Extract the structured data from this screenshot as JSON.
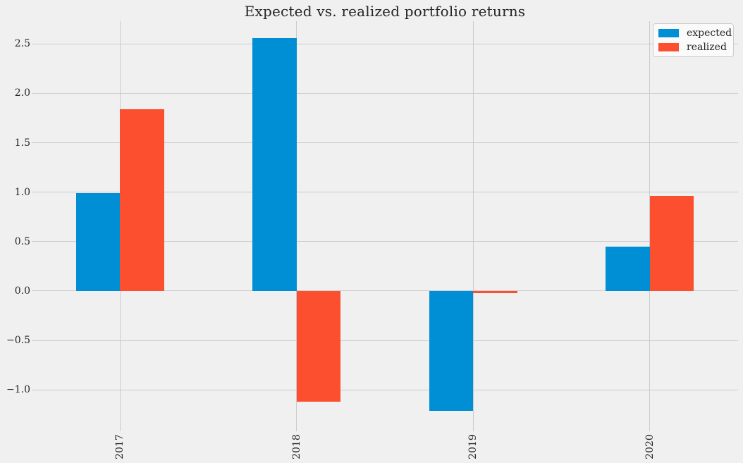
{
  "title": "Expected vs. realized portfolio returns",
  "colors": {
    "background": "#f0f0f0",
    "grid": "#cbcbcb",
    "tick": "#cbcbcb",
    "text": "#262626",
    "expected": "#008fd5",
    "realized": "#fc4f30",
    "legend_background": "#fafafa",
    "legend_border": "#cccccc"
  },
  "legend": {
    "position": "upper right",
    "entries": [
      {
        "label": "expected",
        "color": "#008fd5"
      },
      {
        "label": "realized",
        "color": "#fc4f30"
      }
    ]
  },
  "chart_data": {
    "type": "bar",
    "title": "Expected vs. realized portfolio returns",
    "categories": [
      "2017",
      "2018",
      "2019",
      "2020"
    ],
    "series": [
      {
        "name": "expected",
        "color": "#008fd5",
        "values": [
          0.99,
          2.56,
          -1.21,
          0.45
        ]
      },
      {
        "name": "realized",
        "color": "#fc4f30",
        "values": [
          1.84,
          -1.12,
          -0.02,
          0.96
        ]
      }
    ],
    "xlabel": "",
    "ylabel": "",
    "ylim": [
      -1.39,
      2.73
    ],
    "yticks": [
      -1.0,
      -0.5,
      0.0,
      0.5,
      1.0,
      1.5,
      2.0,
      2.5
    ],
    "ytick_labels": [
      "−1.0",
      "−0.5",
      "0.0",
      "0.5",
      "1.0",
      "1.5",
      "2.0",
      "2.5"
    ],
    "xtick_rotation_deg": 90,
    "grid": true,
    "bar_width_fraction": 0.25,
    "legend_position": "upper right"
  }
}
